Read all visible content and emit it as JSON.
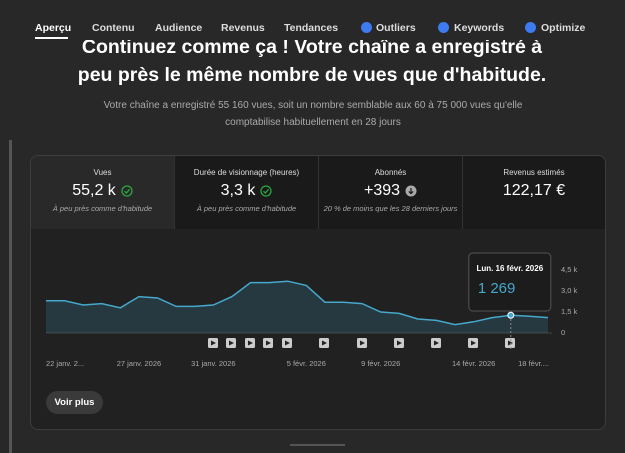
{
  "tabs": [
    "Aperçu",
    "Contenu",
    "Audience",
    "Revenus",
    "Tendances",
    "Outliers",
    "Keywords",
    "Optimize"
  ],
  "headline": "Continuez comme ça ! Votre chaîne a enregistré à peu près le même nombre de vues que d'habitude.",
  "summary": "Votre chaîne a enregistré 55 160 vues, soit un nombre semblable aux 60 à 75 000 vues qu'elle comptabilise habituellement en 28 jours",
  "metrics": [
    {
      "label": "Vues",
      "value": "55,2 k",
      "note": "À peu près comme d'habitude"
    },
    {
      "label": "Durée de visionnage (heures)",
      "value": "3,3 k",
      "note": "À peu près comme d'habitude"
    },
    {
      "label": "Abonnés",
      "value": "+393",
      "note": "20 % de moins que les 28 derniers jours"
    },
    {
      "label": "Revenus estimés",
      "value": "122,17 €"
    }
  ],
  "chart_data": {
    "type": "line",
    "categories": [
      "22 janv. 2...",
      null,
      null,
      null,
      null,
      "27 janv. 2026",
      null,
      null,
      null,
      "31 janv. 2026",
      null,
      null,
      null,
      null,
      "5 févr. 2026",
      null,
      null,
      null,
      "9 févr. 2026",
      null,
      null,
      null,
      null,
      "14 févr. 2026",
      null,
      null,
      null,
      "18 févr...."
    ],
    "series": [
      {
        "name": "Vues",
        "color": "#45a8cc",
        "values": [
          2300,
          2300,
          2000,
          2100,
          1800,
          2600,
          2500,
          1900,
          1900,
          2000,
          2600,
          3600,
          3600,
          3700,
          3400,
          2200,
          2200,
          2100,
          1500,
          1400,
          1000,
          900,
          600,
          800,
          1100,
          1269,
          1200,
          1100
        ],
        "value_labels": [
          null,
          null,
          null,
          null,
          null,
          null,
          null,
          null,
          null,
          null,
          null,
          null,
          null,
          null,
          null,
          null,
          null,
          null,
          null,
          null,
          null,
          null,
          null,
          null,
          null,
          "1 269",
          null,
          null
        ]
      }
    ],
    "tooltip": "Lun. 16 févr. 2026",
    "ylim": [
      0,
      4500
    ],
    "yticks": [
      {
        "value": 4500,
        "label": "4,5 k"
      },
      {
        "value": 3000,
        "label": "3,0 k"
      },
      {
        "value": 1500,
        "label": "1,5 k"
      },
      0
    ]
  },
  "button": "Voir plus"
}
